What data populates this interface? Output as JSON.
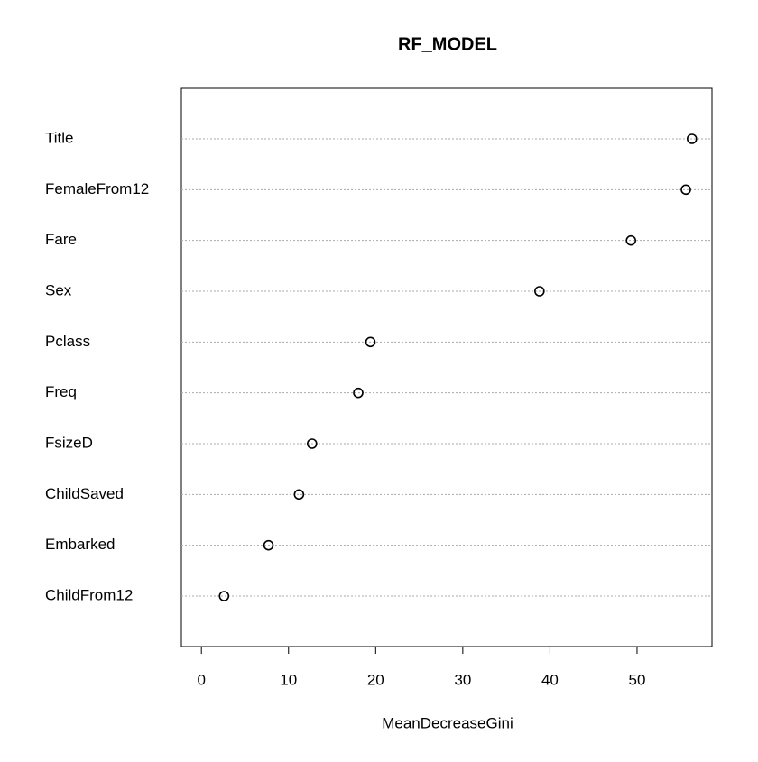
{
  "chart_data": {
    "type": "dot",
    "title": "RF_MODEL",
    "x_label": "MeanDecreaseGini",
    "categories": [
      "Title",
      "FemaleFrom12",
      "Fare",
      "Sex",
      "Pclass",
      "Freq",
      "FsizeD",
      "ChildSaved",
      "Embarked",
      "ChildFrom12"
    ],
    "values": [
      56.3,
      55.6,
      49.3,
      38.8,
      19.4,
      18.0,
      12.7,
      11.2,
      7.7,
      2.6
    ],
    "color": "#000000",
    "xlim": [
      -2.3,
      58.6
    ],
    "xticks": [
      0,
      10,
      20,
      30,
      40,
      50
    ],
    "grid": true
  }
}
